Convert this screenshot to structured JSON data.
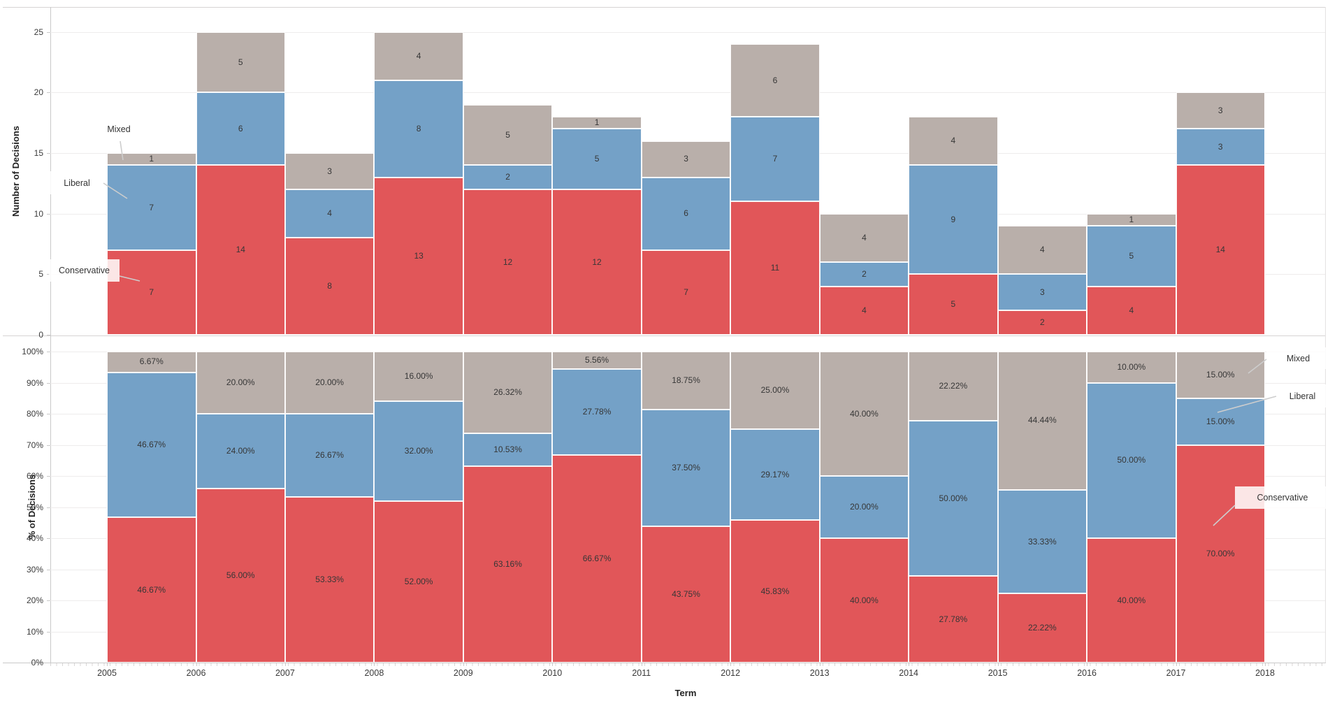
{
  "page": {
    "term_axis_label": "Term"
  },
  "colors": {
    "conservative": "#e15659",
    "liberal": "#74a1c7",
    "mixed": "#b9afaa",
    "gridline": "#eeecec",
    "axis_line": "#c9c9c9",
    "annotation_line": "#cdcdcd",
    "label_text": "#363636"
  },
  "chart_data": [
    {
      "type": "bar",
      "stacked": true,
      "pane": "top",
      "title": "",
      "xlabel": "Term",
      "ylabel": "Number of Decisions",
      "ylim": [
        0,
        27
      ],
      "grid": true,
      "y_ticks": [
        "0",
        "5",
        "10",
        "15",
        "20",
        "25"
      ],
      "x_ticks": [
        "2005",
        "2006",
        "2007",
        "2008",
        "2009",
        "2010",
        "2011",
        "2012",
        "2013",
        "2014",
        "2015",
        "2016",
        "2017",
        "2018"
      ],
      "categories": [
        2005,
        2006,
        2007,
        2008,
        2009,
        2010,
        2011,
        2012,
        2013,
        2014,
        2015,
        2016,
        2017
      ],
      "series": [
        {
          "name": "Conservative",
          "color": "#e15659",
          "values": [
            7,
            14,
            8,
            13,
            12,
            12,
            7,
            11,
            4,
            5,
            2,
            4,
            14
          ],
          "labels": [
            "7",
            "14",
            "8",
            "13",
            "12",
            "12",
            "7",
            "11",
            "4",
            "5",
            "2",
            "4",
            "14"
          ]
        },
        {
          "name": "Liberal",
          "color": "#74a1c7",
          "values": [
            7,
            6,
            4,
            8,
            2,
            5,
            6,
            7,
            2,
            9,
            3,
            5,
            3
          ],
          "labels": [
            "7",
            "6",
            "4",
            "8",
            "2",
            "5",
            "6",
            "7",
            "2",
            "9",
            "3",
            "5",
            "3"
          ]
        },
        {
          "name": "Mixed",
          "color": "#b9afaa",
          "values": [
            1,
            5,
            3,
            4,
            5,
            1,
            3,
            6,
            4,
            4,
            4,
            1,
            3
          ],
          "labels": [
            "1",
            "5",
            "3",
            "4",
            "5",
            "1",
            "3",
            "6",
            "4",
            "4",
            "4",
            "1",
            "3"
          ]
        }
      ],
      "annotations": [
        "Mixed",
        "Liberal",
        "Conservative"
      ]
    },
    {
      "type": "bar",
      "stacked": true,
      "pane": "bottom",
      "title": "",
      "xlabel": "Term",
      "ylabel": "% of Decisions",
      "ylim": [
        0,
        100
      ],
      "grid": true,
      "y_ticks": [
        "0%",
        "10%",
        "20%",
        "30%",
        "40%",
        "50%",
        "60%",
        "70%",
        "80%",
        "90%",
        "100%"
      ],
      "x_ticks": [
        "2005",
        "2006",
        "2007",
        "2008",
        "2009",
        "2010",
        "2011",
        "2012",
        "2013",
        "2014",
        "2015",
        "2016",
        "2017",
        "2018"
      ],
      "categories": [
        2005,
        2006,
        2007,
        2008,
        2009,
        2010,
        2011,
        2012,
        2013,
        2014,
        2015,
        2016,
        2017
      ],
      "series": [
        {
          "name": "Conservative",
          "color": "#e15659",
          "values": [
            46.67,
            56.0,
            53.33,
            52.0,
            63.16,
            66.67,
            43.75,
            45.83,
            40.0,
            27.78,
            22.22,
            40.0,
            70.0
          ],
          "labels": [
            "46.67%",
            "56.00%",
            "53.33%",
            "52.00%",
            "63.16%",
            "66.67%",
            "43.75%",
            "45.83%",
            "40.00%",
            "27.78%",
            "22.22%",
            "40.00%",
            "70.00%"
          ]
        },
        {
          "name": "Liberal",
          "color": "#74a1c7",
          "values": [
            46.67,
            24.0,
            26.67,
            32.0,
            10.53,
            27.78,
            37.5,
            29.17,
            20.0,
            50.0,
            33.33,
            50.0,
            15.0
          ],
          "labels": [
            "46.67%",
            "24.00%",
            "26.67%",
            "32.00%",
            "10.53%",
            "27.78%",
            "37.50%",
            "29.17%",
            "20.00%",
            "50.00%",
            "33.33%",
            "50.00%",
            "15.00%"
          ]
        },
        {
          "name": "Mixed",
          "color": "#b9afaa",
          "values": [
            6.67,
            20.0,
            20.0,
            16.0,
            26.32,
            5.56,
            18.75,
            25.0,
            40.0,
            22.22,
            44.44,
            10.0,
            15.0
          ],
          "labels": [
            "6.67%",
            "20.00%",
            "20.00%",
            "16.00%",
            "26.32%",
            "5.56%",
            "18.75%",
            "25.00%",
            "40.00%",
            "22.22%",
            "44.44%",
            "10.00%",
            "15.00%"
          ]
        }
      ],
      "annotations": [
        "Mixed",
        "Liberal",
        "Conservative"
      ]
    }
  ]
}
